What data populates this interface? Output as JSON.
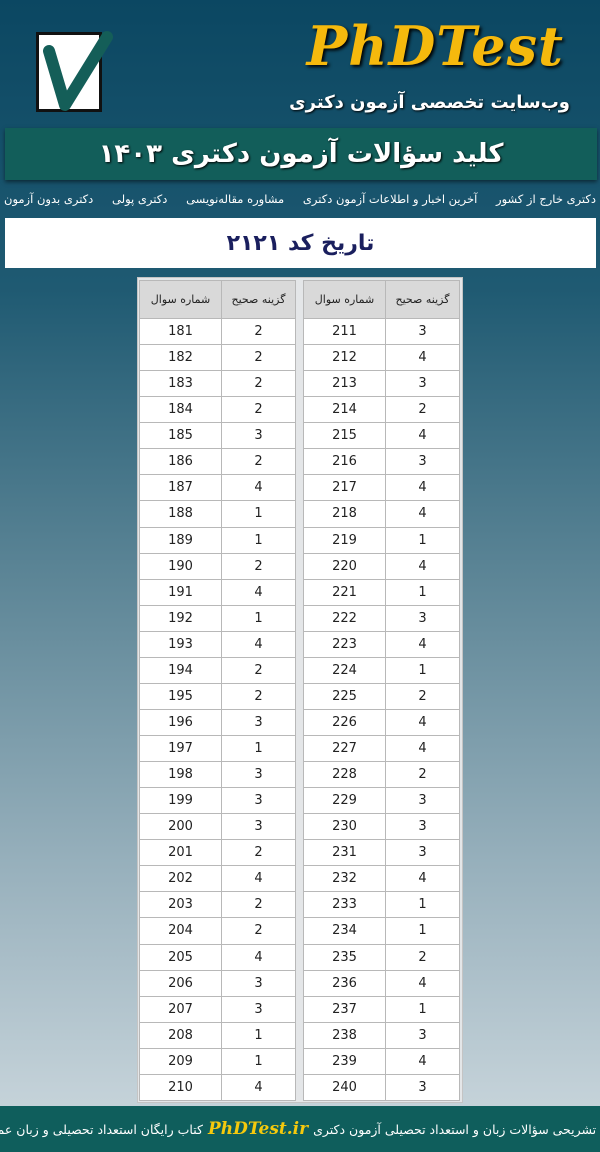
{
  "header": {
    "brand": "PhDTest",
    "tagline": "وب‌سایت تخصصی آزمون دکتری",
    "banner_title": "کلید سؤالات آزمون دکتری ۱۴۰۳",
    "brand_color": "#f5b90d",
    "banner_color": "#125e5a"
  },
  "nav": {
    "items": [
      {
        "label": "دکتری بدون آزمون"
      },
      {
        "label": "دکتری پولی"
      },
      {
        "label": "مشاوره مقاله‌نویسی"
      },
      {
        "label": "آخرین اخبار و اطلاعات آزمون دکتری"
      },
      {
        "label": "دکتری خارج از کشور"
      }
    ]
  },
  "subtitle": "تاریخ کد ۲۱۲۱",
  "table": {
    "header_question": "شماره سوال",
    "header_answer": "گزینه صحیح",
    "left": [
      [
        "181",
        "2"
      ],
      [
        "182",
        "2"
      ],
      [
        "183",
        "2"
      ],
      [
        "184",
        "2"
      ],
      [
        "185",
        "3"
      ],
      [
        "186",
        "2"
      ],
      [
        "187",
        "4"
      ],
      [
        "188",
        "1"
      ],
      [
        "189",
        "1"
      ],
      [
        "190",
        "2"
      ],
      [
        "191",
        "4"
      ],
      [
        "192",
        "1"
      ],
      [
        "193",
        "4"
      ],
      [
        "194",
        "2"
      ],
      [
        "195",
        "2"
      ],
      [
        "196",
        "3"
      ],
      [
        "197",
        "1"
      ],
      [
        "198",
        "3"
      ],
      [
        "199",
        "3"
      ],
      [
        "200",
        "3"
      ],
      [
        "201",
        "2"
      ],
      [
        "202",
        "4"
      ],
      [
        "203",
        "2"
      ],
      [
        "204",
        "2"
      ],
      [
        "205",
        "4"
      ],
      [
        "206",
        "3"
      ],
      [
        "207",
        "3"
      ],
      [
        "208",
        "1"
      ],
      [
        "209",
        "1"
      ],
      [
        "210",
        "4"
      ]
    ],
    "right": [
      [
        "211",
        "3"
      ],
      [
        "212",
        "4"
      ],
      [
        "213",
        "3"
      ],
      [
        "214",
        "2"
      ],
      [
        "215",
        "4"
      ],
      [
        "216",
        "3"
      ],
      [
        "217",
        "4"
      ],
      [
        "218",
        "4"
      ],
      [
        "219",
        "1"
      ],
      [
        "220",
        "4"
      ],
      [
        "221",
        "1"
      ],
      [
        "222",
        "3"
      ],
      [
        "223",
        "4"
      ],
      [
        "224",
        "1"
      ],
      [
        "225",
        "2"
      ],
      [
        "226",
        "4"
      ],
      [
        "227",
        "4"
      ],
      [
        "228",
        "2"
      ],
      [
        "229",
        "3"
      ],
      [
        "230",
        "3"
      ],
      [
        "231",
        "3"
      ],
      [
        "232",
        "4"
      ],
      [
        "233",
        "1"
      ],
      [
        "234",
        "1"
      ],
      [
        "235",
        "2"
      ],
      [
        "236",
        "4"
      ],
      [
        "237",
        "1"
      ],
      [
        "238",
        "3"
      ],
      [
        "239",
        "4"
      ],
      [
        "240",
        "3"
      ]
    ]
  },
  "footer": {
    "text_before": "پاسخ تشریحی سؤالات زبان و استعداد تحصیلی آزمون دکتری",
    "site": "PhDTest.ir",
    "text_after": "کتاب رایگان استعداد تحصیلی و زبان عمومی"
  }
}
